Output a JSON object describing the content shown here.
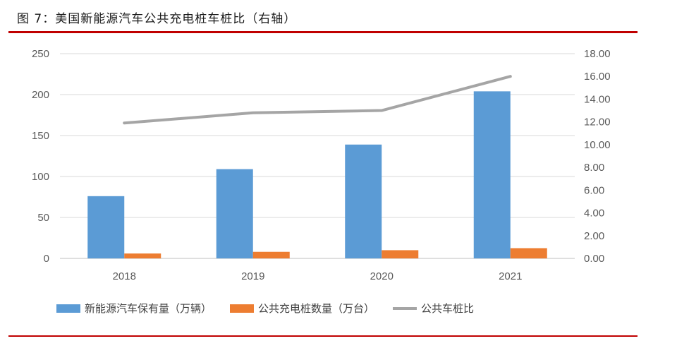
{
  "figure": {
    "title": "图 7：美国新能源汽车公共充电桩车桩比（右轴）"
  },
  "colors": {
    "rule": "#c00000",
    "bar1": "#5b9bd5",
    "bar2": "#ed7d31",
    "line": "#a5a5a5",
    "grid": "#d9d9d9"
  },
  "chart_data": {
    "type": "bar",
    "categories": [
      "2018",
      "2019",
      "2020",
      "2021"
    ],
    "series": [
      {
        "name": "新能源汽车保有量（万辆）",
        "type": "bar",
        "axis": "left",
        "values": [
          76,
          109,
          139,
          204
        ]
      },
      {
        "name": "公共充电桩数量（万台）",
        "type": "bar",
        "axis": "left",
        "values": [
          6,
          8,
          10,
          12.5
        ]
      },
      {
        "name": "公共车桩比",
        "type": "line",
        "axis": "right",
        "values": [
          11.9,
          12.8,
          13.0,
          16.0
        ]
      }
    ],
    "ylim": [
      0,
      250
    ],
    "yticks": [
      "0",
      "50",
      "100",
      "150",
      "200",
      "250"
    ],
    "y2lim": [
      0,
      18
    ],
    "y2ticks": [
      "0.00",
      "2.00",
      "4.00",
      "6.00",
      "8.00",
      "10.00",
      "12.00",
      "14.00",
      "16.00",
      "18.00"
    ],
    "grid": true,
    "legend_position": "bottom"
  }
}
